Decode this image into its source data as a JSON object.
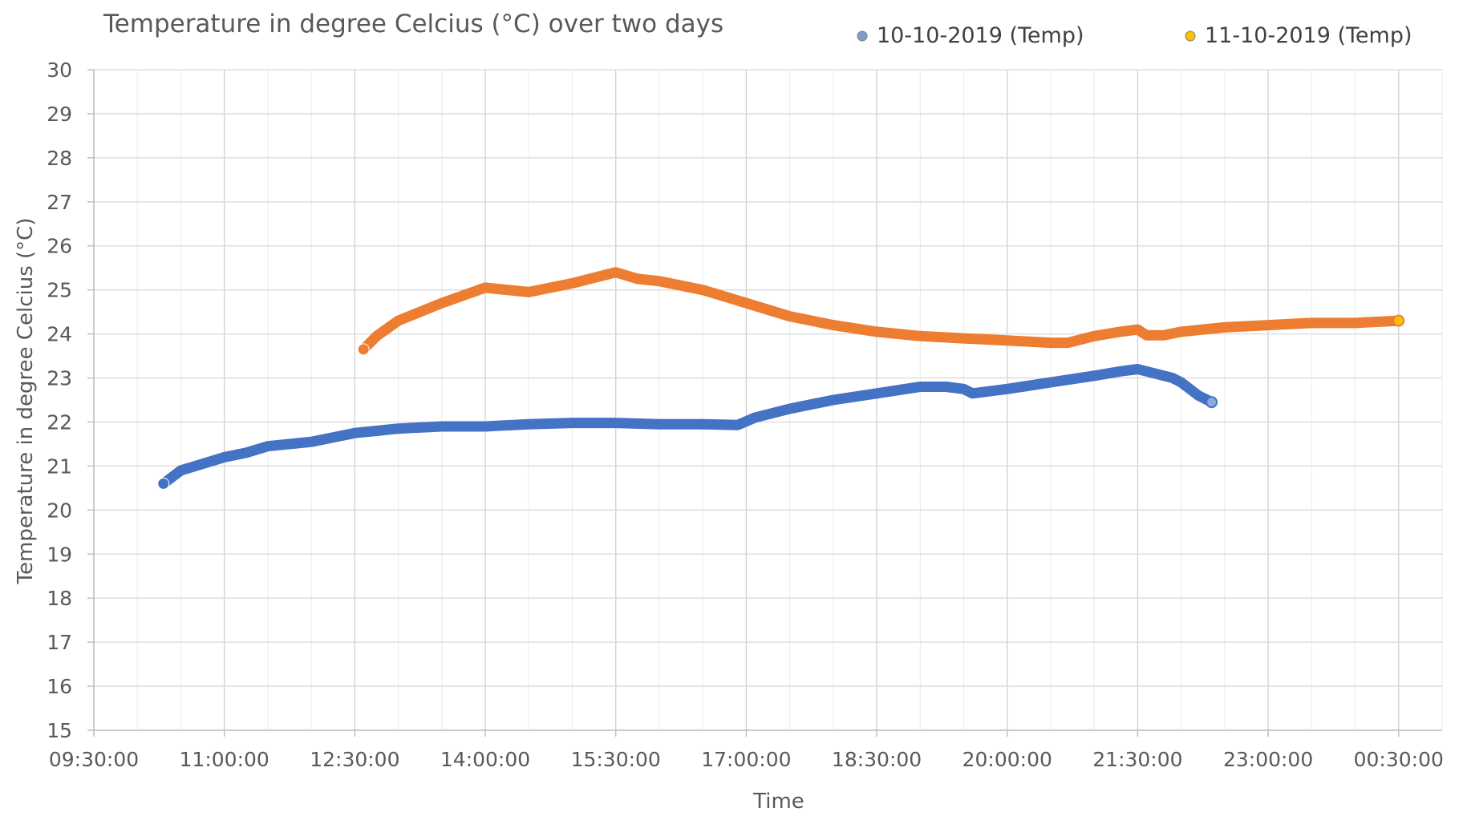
{
  "chart_data": {
    "type": "line",
    "title": "Temperature in degree Celcius (°C) over two days",
    "xlabel": "Time",
    "ylabel": "Temperature in degree Celcius (°C)",
    "x_unit": "hours",
    "xlim": [
      9.5,
      25.0
    ],
    "ylim": [
      15,
      30
    ],
    "y_ticks": [
      15,
      16,
      17,
      18,
      19,
      20,
      21,
      22,
      23,
      24,
      25,
      26,
      27,
      28,
      29,
      30
    ],
    "x_ticks": [
      {
        "value": 9.5,
        "label": "09:30:00"
      },
      {
        "value": 11.0,
        "label": "11:00:00"
      },
      {
        "value": 12.5,
        "label": "12:30:00"
      },
      {
        "value": 14.0,
        "label": "14:00:00"
      },
      {
        "value": 15.5,
        "label": "15:30:00"
      },
      {
        "value": 17.0,
        "label": "17:00:00"
      },
      {
        "value": 18.5,
        "label": "18:30:00"
      },
      {
        "value": 20.0,
        "label": "20:00:00"
      },
      {
        "value": 21.5,
        "label": "21:30:00"
      },
      {
        "value": 23.0,
        "label": "23:00:00"
      },
      {
        "value": 24.5,
        "label": "00:30:00"
      }
    ],
    "grid": true,
    "legend_position": "top-right",
    "series": [
      {
        "name": "10-10-2019 (Temp)",
        "color": "#4472C4",
        "end_marker_color": "#8EA9DB",
        "legend_marker_color": "#7F9CC9",
        "x": [
          10.3,
          10.4,
          10.5,
          10.75,
          11.0,
          11.25,
          11.5,
          12.0,
          12.25,
          12.5,
          12.75,
          13.0,
          13.5,
          14.0,
          14.5,
          15.0,
          15.5,
          16.0,
          16.5,
          16.9,
          17.1,
          17.3,
          17.5,
          18.0,
          18.5,
          19.0,
          19.3,
          19.5,
          19.6,
          20.0,
          20.5,
          21.0,
          21.3,
          21.5,
          21.7,
          21.9,
          22.0,
          22.2,
          22.35
        ],
        "y": [
          20.6,
          20.75,
          20.9,
          21.05,
          21.2,
          21.3,
          21.45,
          21.55,
          21.65,
          21.75,
          21.8,
          21.85,
          21.9,
          21.9,
          21.95,
          21.98,
          21.98,
          21.95,
          21.95,
          21.93,
          22.1,
          22.2,
          22.3,
          22.5,
          22.65,
          22.8,
          22.8,
          22.75,
          22.65,
          22.75,
          22.9,
          23.05,
          23.15,
          23.2,
          23.1,
          23.0,
          22.9,
          22.6,
          22.45
        ]
      },
      {
        "name": "11-10-2019 (Temp)",
        "color": "#ED7D31",
        "end_marker_color": "#FFC000",
        "legend_marker_color": "#FFC000",
        "x": [
          12.6,
          12.75,
          13.0,
          13.5,
          14.0,
          14.5,
          15.0,
          15.5,
          15.75,
          16.0,
          16.5,
          17.0,
          17.5,
          18.0,
          18.5,
          19.0,
          19.5,
          20.0,
          20.5,
          20.7,
          21.0,
          21.3,
          21.5,
          21.6,
          21.8,
          22.0,
          22.5,
          23.0,
          23.5,
          24.0,
          24.5
        ],
        "y": [
          23.65,
          23.95,
          24.3,
          24.7,
          25.05,
          24.95,
          25.15,
          25.4,
          25.25,
          25.2,
          25.0,
          24.7,
          24.4,
          24.2,
          24.05,
          23.95,
          23.9,
          23.85,
          23.8,
          23.8,
          23.95,
          24.05,
          24.1,
          23.97,
          23.97,
          24.05,
          24.15,
          24.2,
          24.25,
          24.25,
          24.3
        ]
      }
    ]
  }
}
